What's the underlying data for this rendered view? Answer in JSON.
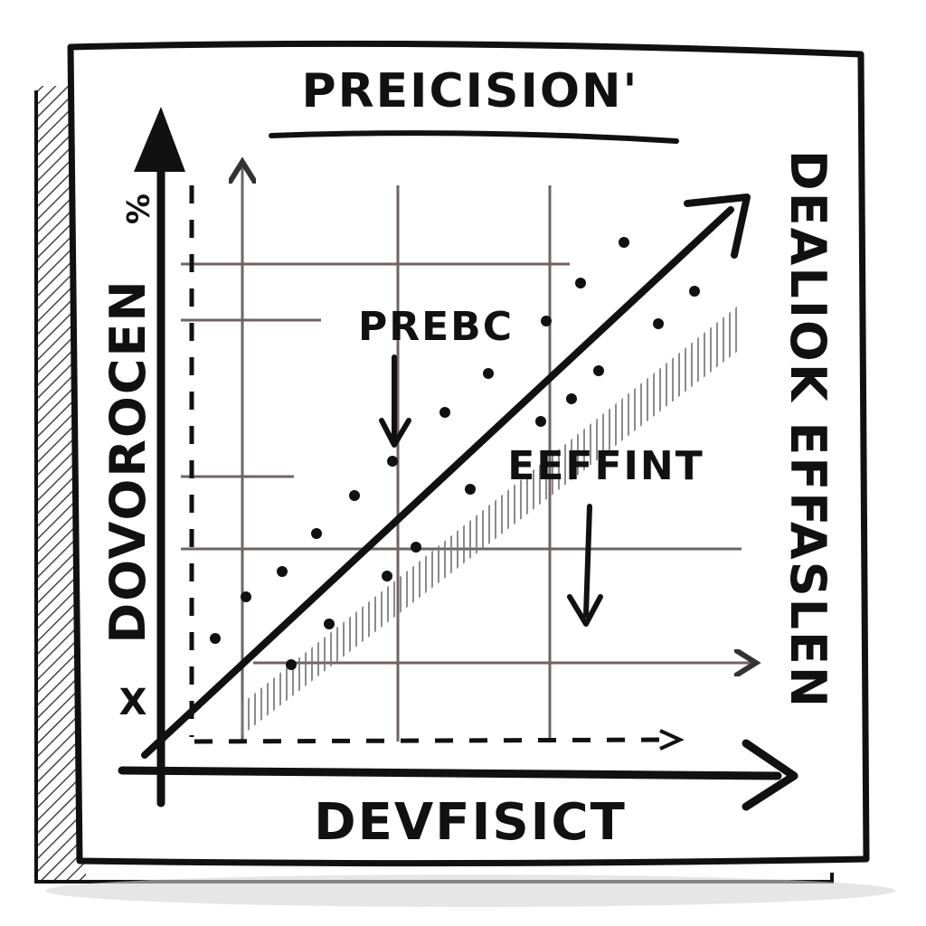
{
  "title": "PREICISION'",
  "x_axis_label": "DEVFISICT",
  "y_axis_label": "DOVOROCEN",
  "y_axis_top_mark": "%",
  "y_axis_bottom_mark": "X",
  "right_label": "DEALIOK EFFASLEN",
  "annotations": {
    "upper": "PREBC",
    "lower": "EEFFINT"
  },
  "colors": {
    "ink": "#111111",
    "grid": "#6f6464",
    "shadow": "#8a8a8a",
    "paper": "#ffffff"
  }
}
